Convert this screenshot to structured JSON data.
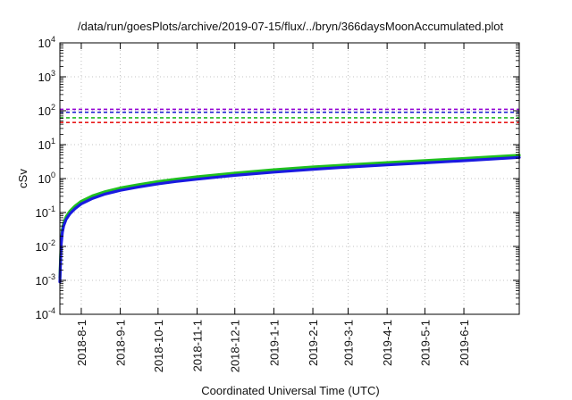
{
  "chart_data": {
    "type": "line",
    "title": "/data/run/goesPlots/archive/2019-07-15/flux/../bryn/366daysMoonAccumulated.plot",
    "xlabel": "Coordinated Universal Time (UTC)",
    "ylabel": "cSv",
    "x_range": [
      "2018-07-15",
      "2019-07-15"
    ],
    "y_scale": "log",
    "ylim": [
      0.0001,
      10000
    ],
    "grid": true,
    "y_ticks": [
      {
        "base": "10",
        "exp": "-4",
        "value": 0.0001
      },
      {
        "base": "10",
        "exp": "-3",
        "value": 0.001
      },
      {
        "base": "10",
        "exp": "-2",
        "value": 0.01
      },
      {
        "base": "10",
        "exp": "-1",
        "value": 0.1
      },
      {
        "base": "10",
        "exp": "0",
        "value": 1
      },
      {
        "base": "10",
        "exp": "1",
        "value": 10
      },
      {
        "base": "10",
        "exp": "2",
        "value": 100
      },
      {
        "base": "10",
        "exp": "3",
        "value": 1000
      },
      {
        "base": "10",
        "exp": "4",
        "value": 10000
      }
    ],
    "x_ticks": [
      {
        "label": "2018-8-1",
        "date": "2018-08-01"
      },
      {
        "label": "2018-9-1",
        "date": "2018-09-01"
      },
      {
        "label": "2018-10-1",
        "date": "2018-10-01"
      },
      {
        "label": "2018-11-1",
        "date": "2018-11-01"
      },
      {
        "label": "2018-12-1",
        "date": "2018-12-01"
      },
      {
        "label": "2019-1-1",
        "date": "2019-01-01"
      },
      {
        "label": "2019-2-1",
        "date": "2019-02-01"
      },
      {
        "label": "2019-3-1",
        "date": "2019-03-01"
      },
      {
        "label": "2019-4-1",
        "date": "2019-04-01"
      },
      {
        "label": "2019-5-1",
        "date": "2019-05-01"
      },
      {
        "label": "2019-6-1",
        "date": "2019-06-01"
      }
    ],
    "reference_lines": [
      {
        "value": 110,
        "color": "#9400d3"
      },
      {
        "value": 90,
        "color": "#1515d0"
      },
      {
        "value": 62,
        "color": "#22bb22"
      },
      {
        "value": 45,
        "color": "#e81a1a"
      }
    ],
    "series": [
      {
        "color": "#20c020",
        "x": [
          "2018-07-15",
          "2018-07-16",
          "2018-07-17",
          "2018-07-18",
          "2018-07-20",
          "2018-07-23",
          "2018-07-27",
          "2018-08-01",
          "2018-08-10",
          "2018-08-20",
          "2018-09-01",
          "2018-09-15",
          "2018-10-01",
          "2018-10-15",
          "2018-11-01",
          "2018-12-01",
          "2019-01-01",
          "2019-02-01",
          "2019-03-01",
          "2019-04-01",
          "2019-05-01",
          "2019-06-01",
          "2019-07-15"
        ],
        "y": [
          0.0012,
          0.014,
          0.032,
          0.048,
          0.075,
          0.11,
          0.155,
          0.215,
          0.31,
          0.41,
          0.53,
          0.66,
          0.82,
          0.96,
          1.13,
          1.45,
          1.82,
          2.2,
          2.55,
          2.95,
          3.4,
          3.9,
          4.9
        ]
      },
      {
        "color": "#1a1ae0",
        "x": [
          "2018-07-15",
          "2018-07-16",
          "2018-07-17",
          "2018-07-18",
          "2018-07-20",
          "2018-07-23",
          "2018-07-27",
          "2018-08-01",
          "2018-08-10",
          "2018-08-20",
          "2018-09-01",
          "2018-09-15",
          "2018-10-01",
          "2018-10-15",
          "2018-11-01",
          "2018-12-01",
          "2019-01-01",
          "2019-02-01",
          "2019-03-01",
          "2019-04-01",
          "2019-05-01",
          "2019-06-01",
          "2019-07-15"
        ],
        "y": [
          0.0009,
          0.011,
          0.026,
          0.04,
          0.063,
          0.092,
          0.13,
          0.18,
          0.26,
          0.35,
          0.45,
          0.56,
          0.7,
          0.82,
          0.96,
          1.24,
          1.55,
          1.88,
          2.18,
          2.52,
          2.9,
          3.35,
          4.2
        ]
      }
    ]
  }
}
